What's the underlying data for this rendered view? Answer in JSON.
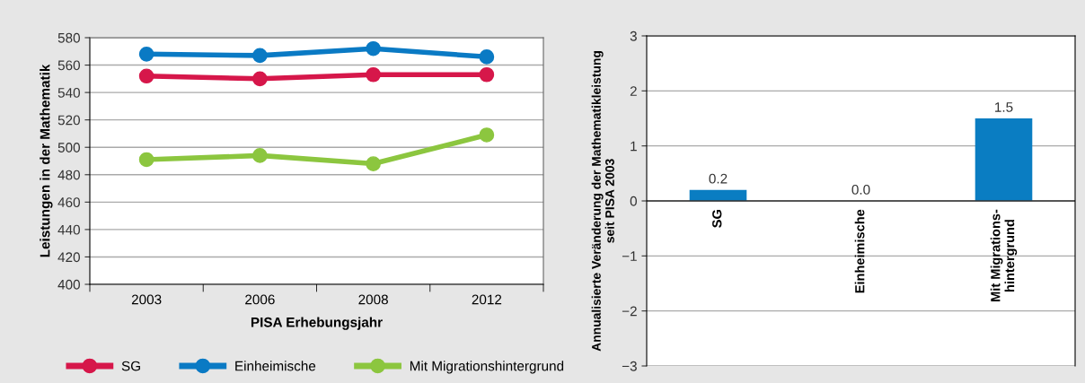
{
  "chart_data": [
    {
      "type": "line",
      "xlabel": "PISA Erhebungsjahr",
      "ylabel": "Leistungen in der Mathematik",
      "categories": [
        "2003",
        "2006",
        "2008",
        "2012"
      ],
      "series": [
        {
          "name": "SG",
          "color": "#d6174a",
          "values": [
            552,
            550,
            553,
            553
          ]
        },
        {
          "name": "Einheimische",
          "color": "#0a7ac4",
          "values": [
            568,
            567,
            572,
            566
          ]
        },
        {
          "name": "Mit Migrationshintergrund",
          "color": "#8cc63f",
          "values": [
            491,
            494,
            488,
            509
          ]
        }
      ],
      "ylim": [
        400,
        580
      ],
      "yticks": [
        400,
        420,
        440,
        460,
        480,
        500,
        520,
        540,
        560,
        580
      ],
      "grid": "y",
      "legend": "bottom",
      "marker": "circle",
      "line_style": "solid"
    },
    {
      "type": "bar",
      "ylabel": "Annualisierte Veränderung der Mathematikleistung\nseit PISA 2003",
      "categories": [
        "SG",
        "Einheimische",
        "Mit Migrations-\nhintergrund"
      ],
      "values": [
        0.2,
        0.0,
        1.5
      ],
      "value_labels": [
        "0.2",
        "0.0",
        "1.5"
      ],
      "color": "#0a7dc2",
      "ylim": [
        -3,
        3
      ],
      "yticks": [
        {
          "value": -3,
          "label": "−3"
        },
        {
          "value": -2,
          "label": "−2"
        },
        {
          "value": -1,
          "label": "−1"
        },
        0,
        1,
        2,
        3
      ],
      "grid": "y"
    }
  ]
}
